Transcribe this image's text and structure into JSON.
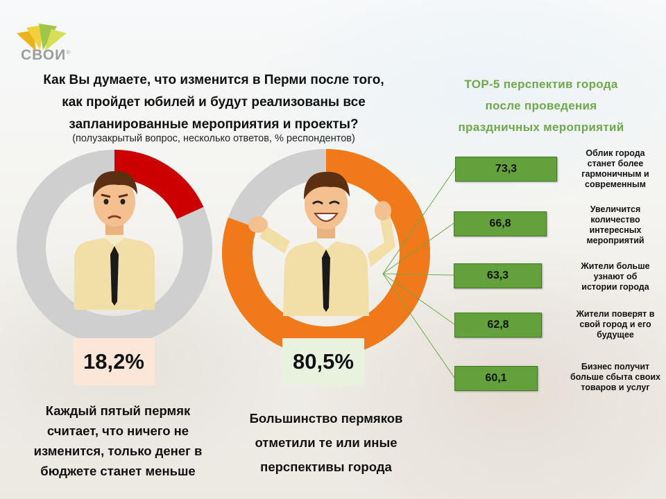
{
  "logo": {
    "text": "СВОИ",
    "mark": "®"
  },
  "question": {
    "lines": [
      "Как Вы думаете, что изменится в Перми после того,",
      "как пройдет юбилей и будут реализованы все",
      "запланированные мероприятия и проекты?"
    ],
    "subtitle": "(полузакрытый вопрос, несколько ответов, % респондентов)"
  },
  "top5_title_lines": [
    "TOP-5 перспектив города",
    "после проведения",
    "праздничных мероприятий"
  ],
  "donuts": [
    {
      "value_label": "18,2%",
      "value": 18.2,
      "color": "#cc0000",
      "rest_color": "#cfcfcf",
      "note_lines": [
        "Каждый пятый пермяк",
        "считает, что ничего не",
        "изменится, только денег в",
        "бюджете станет меньше"
      ]
    },
    {
      "value_label": "80,5%",
      "value": 80.5,
      "color": "#f07a1a",
      "rest_color": "#cfcfcf",
      "note_lines": [
        "Большинство пермяков",
        "отметили те или иные",
        "перспективы города"
      ]
    }
  ],
  "chart_data": {
    "type": "bar",
    "title": "TOP-5 перспектив города после проведения праздничных мероприятий",
    "categories": [
      "Облик города станет более гармоничным и современным",
      "Увеличится количество интересных мероприятий",
      "Жители больше узнают об истории города",
      "Жители поверят в свой город и его будущее",
      "Бизнес получит больше сбыта своих товаров и услуг"
    ],
    "values": [
      73.3,
      66.8,
      63.3,
      62.8,
      60.1
    ],
    "value_labels": [
      "73,3",
      "66,8",
      "63,3",
      "62,8",
      "60,1"
    ],
    "bar_color": "#63a13d"
  },
  "bar_label_lines": [
    [
      "Облик города",
      "станет более",
      "гармоничным и",
      "современным"
    ],
    [
      "Увеличится",
      "количество",
      "интересных",
      "мероприятий"
    ],
    [
      "Жители больше",
      "узнают об",
      "истории города"
    ],
    [
      "Жители поверят в",
      "свой город и его",
      "будущее"
    ],
    [
      "Бизнес получит",
      "больше сбыта своих",
      "товаров и услуг"
    ]
  ]
}
